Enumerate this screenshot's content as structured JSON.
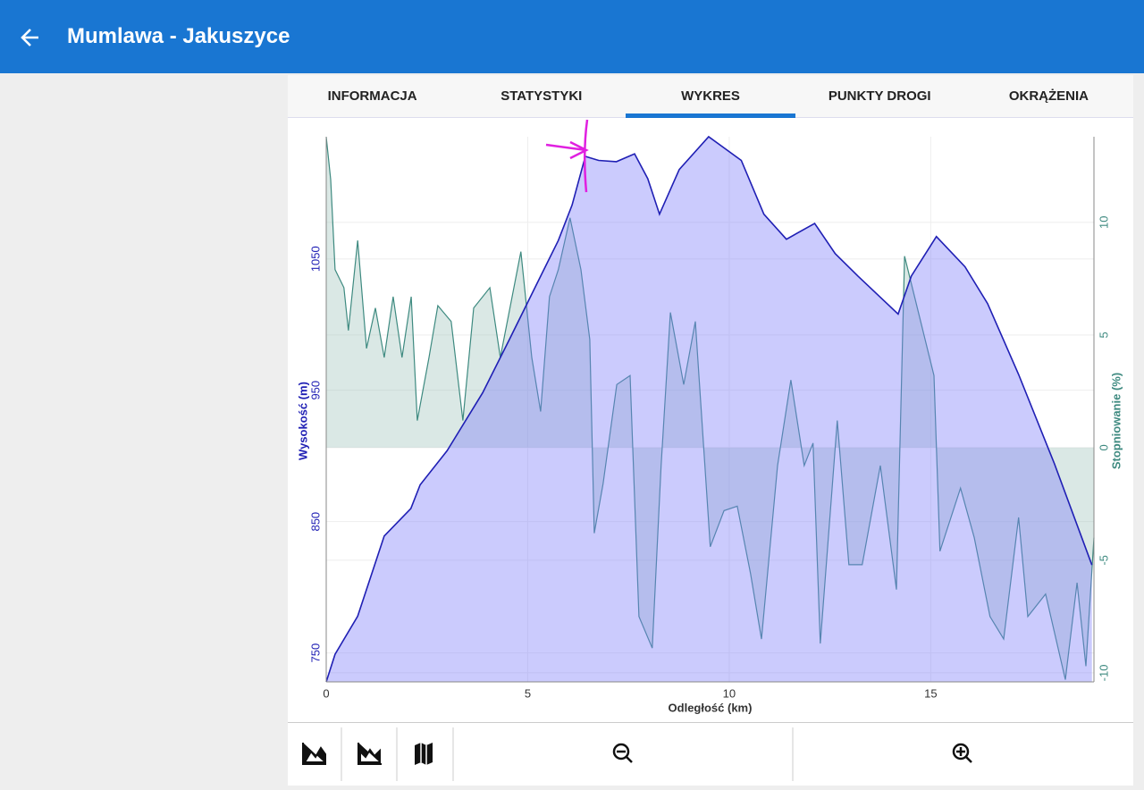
{
  "header": {
    "title": "Mumlawa - Jakuszyce"
  },
  "tabs": [
    "INFORMACJA",
    "STATYSTYKI",
    "WYKRES",
    "PUNKTY DROGI",
    "OKRĄŻENIA"
  ],
  "active_tab": 2,
  "chart_data": {
    "type": "area",
    "xlabel": "Odległość (km)",
    "ylabel": "Wysokość (m)",
    "y2label": "Stopniowanie (%)",
    "xlim": [
      0,
      19.05
    ],
    "xticks": [
      0,
      5,
      10,
      15
    ],
    "ylim": [
      728,
      1143
    ],
    "yticks": [
      750,
      850,
      950,
      1050
    ],
    "y2lim": [
      -10.4,
      13.8
    ],
    "y2ticks": [
      -10,
      -5,
      0,
      5,
      10
    ],
    "grid": true,
    "series": [
      {
        "axis": "y2",
        "color": "#3e8a80",
        "fill": "rgba(150,190,180,0.35)",
        "x": [
          0,
          0.11,
          0.22,
          0.44,
          0.55,
          0.78,
          1.0,
          1.22,
          1.44,
          1.66,
          1.88,
          2.11,
          2.26,
          2.55,
          2.77,
          3.1,
          3.39,
          3.66,
          4.06,
          4.32,
          4.83,
          5.1,
          5.32,
          5.54,
          5.76,
          6.05,
          6.32,
          6.54,
          6.65,
          6.87,
          7.21,
          7.54,
          7.76,
          8.09,
          8.31,
          8.54,
          8.87,
          9.16,
          9.53,
          9.87,
          10.2,
          10.53,
          10.8,
          11.2,
          11.53,
          11.86,
          12.08,
          12.26,
          12.68,
          12.97,
          13.3,
          13.75,
          14.15,
          14.35,
          14.75,
          15.08,
          15.23,
          15.74,
          16.08,
          16.47,
          16.81,
          17.18,
          17.41,
          17.85,
          18.34,
          18.63,
          18.85,
          19.05
        ],
        "values": [
          13.8,
          11.9,
          7.9,
          7.1,
          5.2,
          9.2,
          4.4,
          6.2,
          4.0,
          6.7,
          4.0,
          6.7,
          1.2,
          4.0,
          6.3,
          5.6,
          1.2,
          6.2,
          7.1,
          4.0,
          8.7,
          4.0,
          1.6,
          6.7,
          7.9,
          10.2,
          7.9,
          4.8,
          -3.8,
          -1.6,
          2.8,
          3.2,
          -7.5,
          -8.9,
          -0.8,
          6.0,
          2.8,
          5.6,
          -4.4,
          -2.8,
          -2.6,
          -5.6,
          -8.5,
          -0.8,
          3.0,
          -0.8,
          0.2,
          -8.7,
          1.2,
          -5.2,
          -5.2,
          -0.8,
          -6.3,
          8.5,
          5.6,
          3.2,
          -4.6,
          -1.8,
          -4.0,
          -7.5,
          -8.5,
          -3.1,
          -7.5,
          -6.5,
          -10.3,
          -6.0,
          -9.7,
          -4.0
        ]
      },
      {
        "axis": "y",
        "color": "#1f1fb4",
        "fill": "rgba(125,125,250,0.4)",
        "x": [
          0,
          0.22,
          0.78,
          1.44,
          2.1,
          2.33,
          3.0,
          3.88,
          4.55,
          5.21,
          5.76,
          6.1,
          6.43,
          6.76,
          7.2,
          7.65,
          7.98,
          8.27,
          8.76,
          9.49,
          10.3,
          10.86,
          11.42,
          12.12,
          12.63,
          13.19,
          14.19,
          14.52,
          15.14,
          15.85,
          16.41,
          17.18,
          18.07,
          19.0
        ],
        "values": [
          728,
          749,
          778,
          839,
          860,
          878,
          904,
          948,
          989,
          1030,
          1064,
          1091,
          1128,
          1125,
          1124,
          1130,
          1111,
          1084,
          1118,
          1143,
          1125,
          1084,
          1065,
          1077,
          1054,
          1037,
          1008,
          1037,
          1067,
          1044,
          1016,
          962,
          894,
          817
        ]
      }
    ]
  }
}
